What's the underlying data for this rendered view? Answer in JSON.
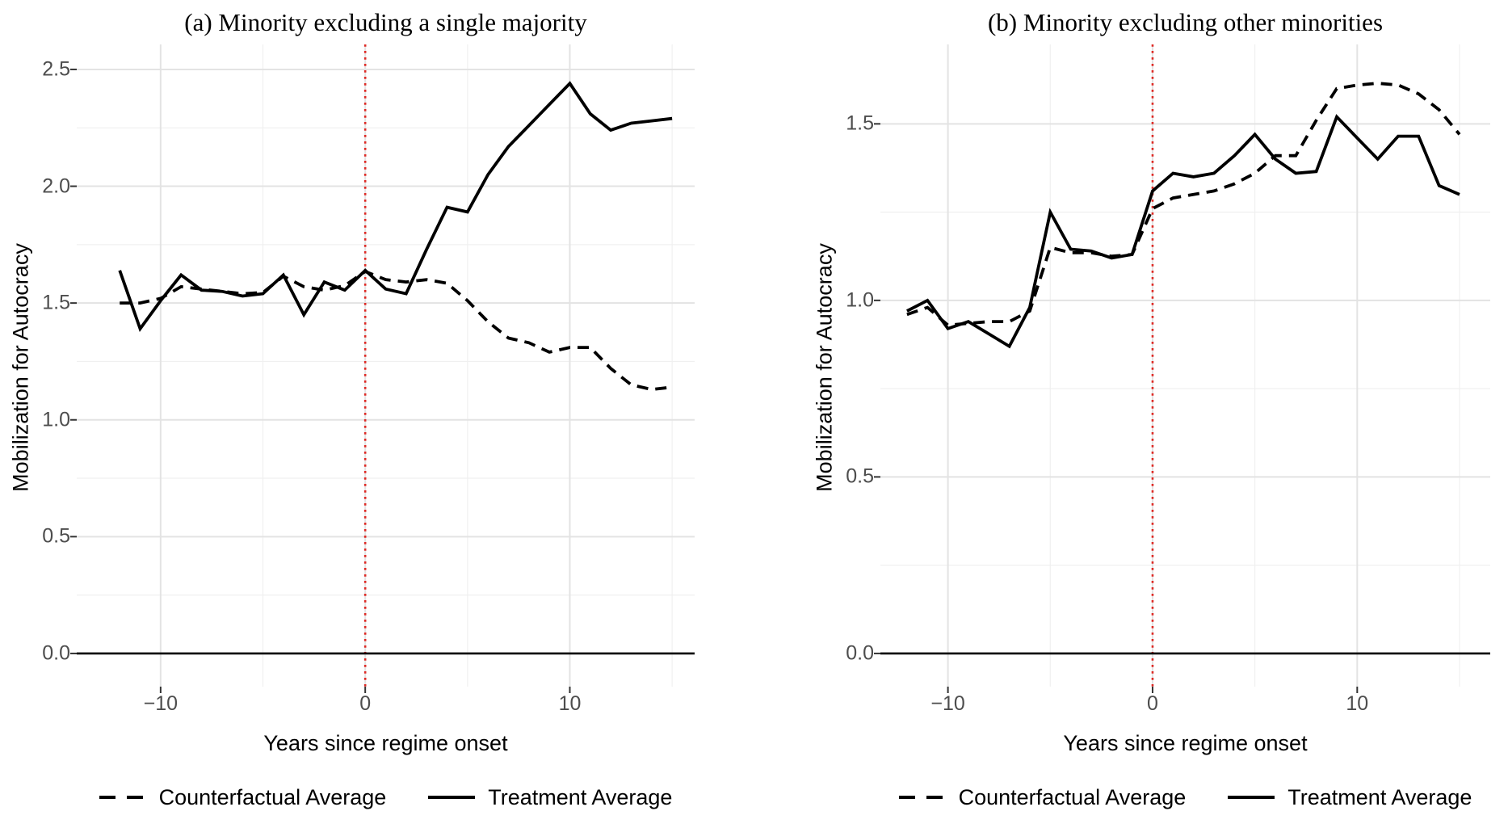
{
  "style": {
    "background": "#FFFFFF",
    "series_line_color": "#000000",
    "onset_vline_color": "#DE2B26",
    "grid_major_color": "#E3E3E3",
    "grid_minor_color": "#F0F0F0",
    "tick_label_color": "#4D4D4D",
    "tick_mark_color": "#333333",
    "axis_title_color": "#000000"
  },
  "legend": {
    "counterfactual_label": "Counterfactual Average",
    "treatment_label": "Treatment Average"
  },
  "chart_data": [
    {
      "type": "line",
      "title": "(a) Minority excluding a single majority",
      "xlabel": "Years since regime onset",
      "ylabel": "Mobilization for Autocracy",
      "x": [
        -12,
        -11,
        -10,
        -9,
        -8,
        -7,
        -6,
        -5,
        -4,
        -3,
        -2,
        -1,
        0,
        1,
        2,
        3,
        4,
        5,
        6,
        7,
        8,
        9,
        10,
        11,
        12,
        13,
        14,
        15
      ],
      "series": [
        {
          "name": "Counterfactual Average",
          "line_style": "dashed",
          "values": [
            1.5,
            1.5,
            1.52,
            1.57,
            1.56,
            1.55,
            1.54,
            1.545,
            1.615,
            1.57,
            1.555,
            1.575,
            1.635,
            1.6,
            1.59,
            1.6,
            1.585,
            1.51,
            1.42,
            1.35,
            1.33,
            1.29,
            1.31,
            1.31,
            1.22,
            1.15,
            1.13,
            1.14
          ]
        },
        {
          "name": "Treatment Average",
          "line_style": "solid",
          "values": [
            1.64,
            1.39,
            1.51,
            1.62,
            1.555,
            1.55,
            1.53,
            1.54,
            1.62,
            1.45,
            1.59,
            1.555,
            1.64,
            1.56,
            1.54,
            1.73,
            1.91,
            1.89,
            2.05,
            2.17,
            2.26,
            2.35,
            2.44,
            2.31,
            2.24,
            2.27,
            2.28,
            2.29
          ]
        }
      ],
      "onset_vline_x": 0,
      "baseline_y": 0,
      "x_tick_labels": [
        {
          "value": -10,
          "label": "−10"
        },
        {
          "value": 0,
          "label": "0"
        },
        {
          "value": 10,
          "label": "10"
        }
      ],
      "y_tick_labels": [
        {
          "value": 0,
          "label": "0.0"
        },
        {
          "value": 0.5,
          "label": "0.5"
        },
        {
          "value": 1,
          "label": "1.0"
        },
        {
          "value": 1.5,
          "label": "1.5"
        },
        {
          "value": 2,
          "label": "2.0"
        },
        {
          "value": 2.5,
          "label": "2.5"
        }
      ],
      "x_grid_major": [
        -10,
        0,
        10
      ],
      "x_grid_minor": [
        -5,
        5,
        15
      ],
      "y_grid_major_step": 0.5,
      "y_grid_minor_step": 0.25,
      "xlim": [
        -14.1,
        16.1
      ],
      "ylim": [
        -0.142,
        2.607
      ],
      "grid": true,
      "legend_position": "bottom"
    },
    {
      "type": "line",
      "title": "(b) Minority excluding other minorities",
      "xlabel": "Years since regime onset",
      "ylabel": "Mobilization for Autocracy",
      "x": [
        -12,
        -11,
        -10,
        -9,
        -8,
        -7,
        -6,
        -5,
        -4,
        -3,
        -2,
        -1,
        0,
        1,
        2,
        3,
        4,
        5,
        6,
        7,
        8,
        9,
        10,
        11,
        12,
        13,
        14,
        15
      ],
      "series": [
        {
          "name": "Counterfactual Average",
          "line_style": "dashed",
          "values": [
            0.96,
            0.98,
            0.93,
            0.935,
            0.94,
            0.94,
            0.97,
            1.15,
            1.135,
            1.135,
            1.125,
            1.13,
            1.26,
            1.29,
            1.3,
            1.31,
            1.33,
            1.36,
            1.41,
            1.41,
            1.51,
            1.6,
            1.61,
            1.615,
            1.61,
            1.585,
            1.54,
            1.47
          ]
        },
        {
          "name": "Treatment Average",
          "line_style": "solid",
          "values": [
            0.97,
            1.0,
            0.92,
            0.94,
            0.905,
            0.87,
            0.98,
            1.25,
            1.145,
            1.14,
            1.12,
            1.13,
            1.31,
            1.36,
            1.35,
            1.36,
            1.41,
            1.47,
            1.4,
            1.36,
            1.365,
            1.52,
            1.46,
            1.4,
            1.465,
            1.465,
            1.325,
            1.3
          ]
        }
      ],
      "onset_vline_x": 0,
      "baseline_y": 0,
      "x_tick_labels": [
        {
          "value": -10,
          "label": "−10"
        },
        {
          "value": 0,
          "label": "0"
        },
        {
          "value": 10,
          "label": "10"
        }
      ],
      "y_tick_labels": [
        {
          "value": 0,
          "label": "0.0"
        },
        {
          "value": 0.5,
          "label": "0.5"
        },
        {
          "value": 1,
          "label": "1.0"
        },
        {
          "value": 1.5,
          "label": "1.5"
        }
      ],
      "x_grid_major": [
        -10,
        0,
        10
      ],
      "x_grid_minor": [
        -5,
        5,
        15
      ],
      "y_grid_major_step": 0.5,
      "y_grid_minor_step": 0.25,
      "xlim": [
        -13.3,
        16.5
      ],
      "ylim": [
        -0.094,
        1.725
      ],
      "grid": true,
      "legend_position": "bottom"
    }
  ]
}
